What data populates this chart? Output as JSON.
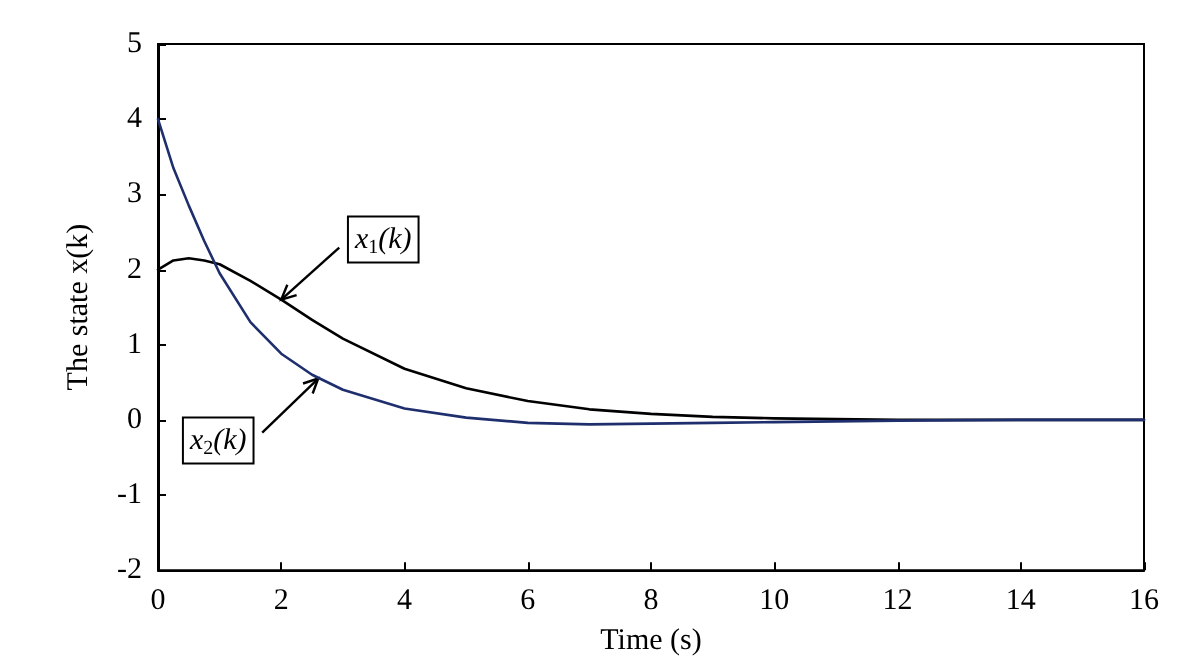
{
  "chart_data": {
    "type": "line",
    "xlabel": "Time (s)",
    "ylabel": "The state x(k)",
    "xlim": [
      0,
      16
    ],
    "xticks": [
      0,
      2,
      4,
      6,
      8,
      10,
      12,
      14,
      16
    ],
    "ylim": [
      -2,
      5
    ],
    "yticks": [
      -2,
      -1,
      0,
      1,
      2,
      3,
      4,
      5
    ],
    "grid": false,
    "marker": "none",
    "line_style": "solid",
    "series": [
      {
        "color": "#000000",
        "x": [
          0,
          0.25,
          0.5,
          0.75,
          1,
          1.5,
          2,
          2.5,
          3,
          4,
          5,
          6,
          7,
          8,
          9,
          10,
          12,
          14,
          16
        ],
        "values": [
          2,
          2.12,
          2.15,
          2.12,
          2.07,
          1.85,
          1.6,
          1.33,
          1.08,
          0.68,
          0.42,
          0.25,
          0.14,
          0.08,
          0.04,
          0.02,
          0,
          0,
          0
        ]
      },
      {
        "color": "#1f2f6e",
        "x": [
          0,
          0.25,
          0.5,
          0.75,
          1,
          1.5,
          2,
          2.5,
          3,
          4,
          5,
          6,
          7,
          8,
          9,
          10,
          12,
          14,
          16
        ],
        "values": [
          4,
          3.35,
          2.85,
          2.38,
          1.95,
          1.3,
          0.88,
          0.6,
          0.4,
          0.15,
          0.03,
          -0.04,
          -0.06,
          -0.05,
          -0.04,
          -0.03,
          -0.01,
          0,
          0
        ]
      }
    ],
    "annotations": [
      {
        "text": "x$_{1}$(k)",
        "x": 2,
        "y": 1.6
      },
      {
        "text": "x$_{2}$(k)",
        "x": 2.6,
        "y": 0.55
      }
    ]
  }
}
